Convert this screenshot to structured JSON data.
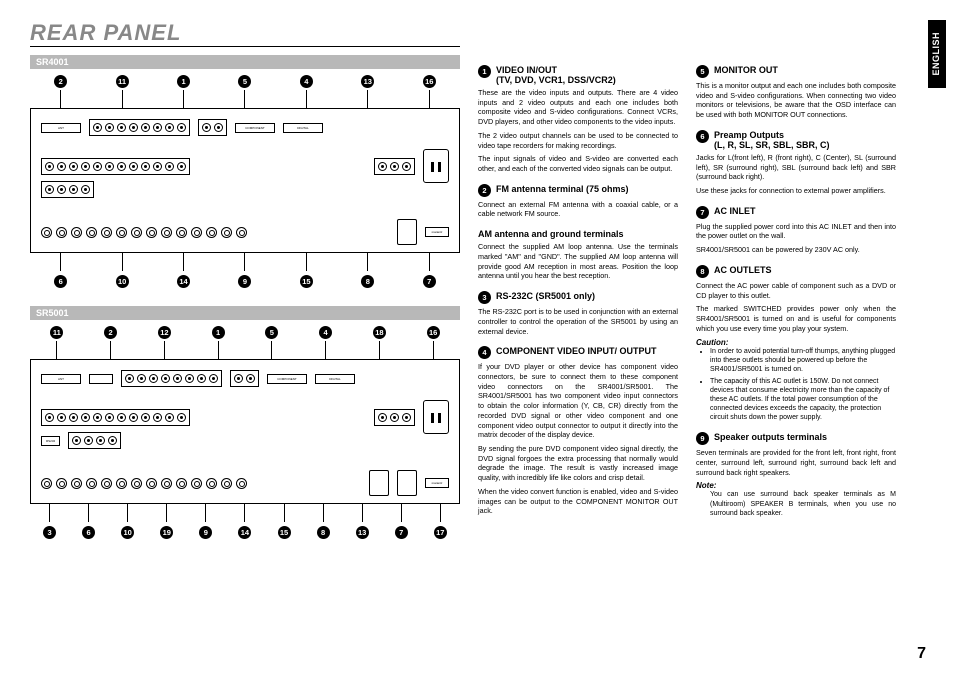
{
  "page": {
    "title": "REAR PANEL",
    "language": "ENGLISH",
    "number": "7"
  },
  "models": {
    "sr4001": {
      "label": "SR4001",
      "callouts_top": [
        "2",
        "11",
        "1",
        "5",
        "4",
        "13",
        "16"
      ],
      "callouts_bottom": [
        "6",
        "10",
        "14",
        "9",
        "15",
        "8",
        "7"
      ]
    },
    "sr5001": {
      "label": "SR5001",
      "callouts_top": [
        "11",
        "2",
        "12",
        "1",
        "5",
        "4",
        "18",
        "16"
      ],
      "callouts_bottom": [
        "3",
        "6",
        "10",
        "19",
        "9",
        "14",
        "15",
        "8",
        "13",
        "7",
        "17"
      ]
    }
  },
  "sections": [
    {
      "num": "1",
      "title": "VIDEO IN/OUT\n(TV, DVD, VCR1, DSS/VCR2)",
      "body": "These are the video inputs and outputs. There are 4 video inputs and 2 video outputs and each one includes both composite video and S-video configurations. Connect VCRs, DVD players, and other video components to the video inputs.\nThe 2 video output channels can be used to be connected to video tape recorders for making recordings.\nThe input signals of video and S-video are converted each other, and each of the converted video signals can be output."
    },
    {
      "num": "2",
      "title": "FM antenna terminal (75 ohms)",
      "body": "Connect an external FM antenna with a coaxial cable, or a cable network FM source."
    },
    {
      "num": "",
      "title": "AM antenna and ground terminals",
      "body": "Connect the supplied AM loop antenna. Use the terminals marked \"AM\" and \"GND\". The supplied AM loop antenna will provide good AM reception in most areas. Position the loop antenna until you hear the best reception."
    },
    {
      "num": "3",
      "title": "RS-232C (SR5001 only)",
      "body": "The RS-232C port is to be used in conjunction with an external controller to control the operation of the SR5001 by using an external device."
    },
    {
      "num": "4",
      "title": "COMPONENT VIDEO INPUT/ OUTPUT",
      "body": "If your DVD player or other device has component video connectors, be sure to connect them to these component video connectors on the SR4001/SR5001. The SR4001/SR5001 has two component video input connectors to obtain the color information (Y, CB, CR) directly from the recorded DVD signal or other video component and one component video output connector to output it directly into the matrix decoder of the display device.\nBy sending the pure DVD component video signal directly, the DVD signal forgoes the extra processing that normally would degrade the image. The result is vastly increased image quality, with incredibly life like colors and crisp detail.\nWhen the video convert function is enabled, video and S-video images can be output to the COMPONENT MONITOR OUT jack."
    }
  ],
  "sections_right": [
    {
      "num": "5",
      "title": "MONITOR OUT",
      "body": "This is a monitor output and each one includes both composite video and S-video configurations. When connecting two video monitors or televisions, be aware that the OSD interface can be used with both MONITOR OUT connections."
    },
    {
      "num": "6",
      "title": "Preamp Outputs\n(L, R, SL, SR, SBL, SBR, C)",
      "body": "Jacks for L(front left), R (front right), C (Center), SL (surround left), SR (surround right), SBL (surround back left) and SBR (surround back right).\nUse these jacks for connection to external power amplifiers."
    },
    {
      "num": "7",
      "title": "AC INLET",
      "body": "Plug the supplied power cord into this AC INLET and then into the power outlet on the wall.\nSR4001/SR5001 can be powered by 230V AC only."
    },
    {
      "num": "8",
      "title": "AC OUTLETS",
      "body": "Connect the AC power cable of component such as a DVD or CD player to this outlet.\nThe marked SWITCHED provides power only when the SR4001/SR5001 is turned on and is useful for components which you use every time you play your system.",
      "caution_label": "Caution:",
      "caution": [
        "In order to avoid potential turn-off thumps, anything plugged into these outlets should be powered up before the SR4001/SR5001 is turned on.",
        "The capacity of this AC outlet is 150W. Do not connect devices that consume electricity more than the capacity of these AC outlets. If the total power consumption of the connected devices exceeds the capacity, the protection circuit shuts down the power supply."
      ]
    },
    {
      "num": "9",
      "title": "Speaker outputs terminals",
      "body": "Seven terminals are provided for the front left, front right, front center, surround left, surround right, surround back left and surround back right speakers.",
      "note_label": "Note:",
      "note": "You can use surround back speaker terminals as M (Multiroom) SPEAKER B terminals, when you use no surround back speaker."
    }
  ]
}
